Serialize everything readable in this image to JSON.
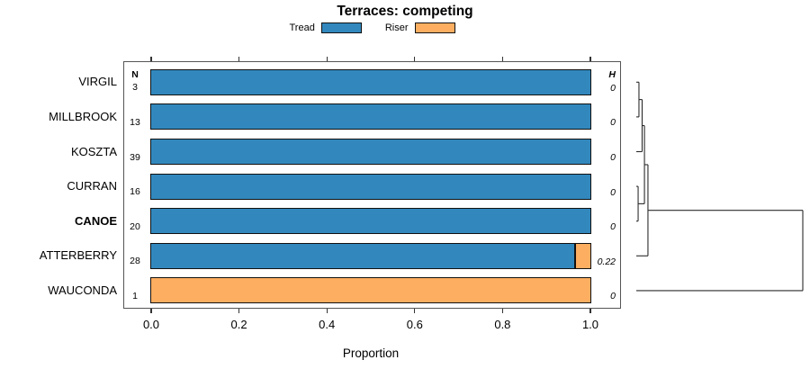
{
  "title": "Terraces: competing",
  "legend": {
    "items": [
      {
        "label": "Tread",
        "color": "#3288BD"
      },
      {
        "label": "Riser",
        "color": "#FDAE61"
      }
    ]
  },
  "columns": {
    "n_header": "N",
    "h_header": "H"
  },
  "rows": [
    {
      "name": "VIRGIL",
      "n": "3",
      "h": "0",
      "tread": 1.0,
      "riser": 0.0,
      "bold": false
    },
    {
      "name": "MILLBROOK",
      "n": "13",
      "h": "0",
      "tread": 1.0,
      "riser": 0.0,
      "bold": false
    },
    {
      "name": "KOSZTA",
      "n": "39",
      "h": "0",
      "tread": 1.0,
      "riser": 0.0,
      "bold": false
    },
    {
      "name": "CURRAN",
      "n": "16",
      "h": "0",
      "tread": 1.0,
      "riser": 0.0,
      "bold": false
    },
    {
      "name": "CANOE",
      "n": "20",
      "h": "0",
      "tread": 1.0,
      "riser": 0.0,
      "bold": true
    },
    {
      "name": "ATTERBERRY",
      "n": "28",
      "h": "0.22",
      "tread": 0.964,
      "riser": 0.036,
      "bold": false
    },
    {
      "name": "WAUCONDA",
      "n": "1",
      "h": "0",
      "tread": 0.0,
      "riser": 1.0,
      "bold": false
    }
  ],
  "axis": {
    "label": "Proportion",
    "ticks": [
      "0.0",
      "0.2",
      "0.4",
      "0.6",
      "0.8",
      "1.0"
    ]
  },
  "chart_data": {
    "type": "bar",
    "orientation": "horizontal",
    "stacked": true,
    "title": "Terraces: competing",
    "xlabel": "Proportion",
    "xlim": [
      0,
      1
    ],
    "x_ticks": [
      0.0,
      0.2,
      0.4,
      0.6,
      0.8,
      1.0
    ],
    "grid": false,
    "legend_position": "top-center",
    "categories": [
      "VIRGIL",
      "MILLBROOK",
      "KOSZTA",
      "CURRAN",
      "CANOE",
      "ATTERBERRY",
      "WAUCONDA"
    ],
    "series": [
      {
        "name": "Tread",
        "color": "#3288BD",
        "values": [
          1.0,
          1.0,
          1.0,
          1.0,
          1.0,
          0.964,
          0.0
        ]
      },
      {
        "name": "Riser",
        "color": "#FDAE61",
        "values": [
          0.0,
          0.0,
          0.0,
          0.0,
          0.0,
          0.036,
          1.0
        ]
      }
    ],
    "sample_counts": {
      "label": "N",
      "values": [
        3,
        13,
        39,
        16,
        20,
        28,
        1
      ]
    },
    "shannon_entropy": {
      "label": "H",
      "values": [
        0,
        0,
        0,
        0,
        0,
        0.22,
        0
      ]
    },
    "dendrogram": {
      "side": "right",
      "max_d": 1.0,
      "merges": [
        {
          "children": [
            "VIRGIL",
            "MILLBROOK"
          ],
          "d": 0.016
        },
        {
          "children": [
            "#0",
            "KOSZTA"
          ],
          "d": 0.035
        },
        {
          "children": [
            "CURRAN",
            "CANOE"
          ],
          "d": 0.011
        },
        {
          "children": [
            "#1",
            "#2"
          ],
          "d": 0.049
        },
        {
          "children": [
            "#3",
            "ATTERBERRY"
          ],
          "d": 0.07
        },
        {
          "children": [
            "#4",
            "WAUCONDA"
          ],
          "d": 1.0
        }
      ]
    }
  }
}
